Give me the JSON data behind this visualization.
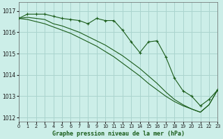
{
  "title": "Graphe pression niveau de la mer (hPa)",
  "background_color": "#cceee8",
  "grid_color": "#aad4ce",
  "line_color": "#1a5c1a",
  "x_hours": [
    0,
    1,
    2,
    3,
    4,
    5,
    6,
    7,
    8,
    9,
    10,
    11,
    12,
    13,
    14,
    15,
    16,
    17,
    18,
    19,
    20,
    21,
    22,
    23
  ],
  "line1_values": [
    1016.65,
    1016.85,
    1016.85,
    1016.85,
    1016.75,
    1016.65,
    1016.6,
    1016.55,
    1016.4,
    1016.65,
    1016.55,
    1016.55,
    1016.1,
    1015.55,
    1015.05,
    1015.55,
    1015.6,
    1014.85,
    1013.85,
    1013.25,
    1013.0,
    1012.55,
    1012.85,
    1013.3
  ],
  "line2_values": [
    1016.65,
    1016.7,
    1016.65,
    1016.6,
    1016.4,
    1016.3,
    1016.15,
    1016.0,
    1015.8,
    1015.6,
    1015.4,
    1015.15,
    1014.9,
    1014.6,
    1014.3,
    1013.95,
    1013.6,
    1013.2,
    1012.85,
    1012.6,
    1012.4,
    1012.25,
    1012.6,
    1013.3
  ],
  "line3_values": [
    1016.65,
    1016.6,
    1016.5,
    1016.4,
    1016.25,
    1016.1,
    1015.95,
    1015.75,
    1015.55,
    1015.35,
    1015.1,
    1014.85,
    1014.55,
    1014.25,
    1013.95,
    1013.6,
    1013.3,
    1013.0,
    1012.75,
    1012.55,
    1012.4,
    1012.25,
    1012.6,
    1013.3
  ],
  "ylim_min": 1011.8,
  "ylim_max": 1017.4,
  "yticks": [
    1012,
    1013,
    1014,
    1015,
    1016,
    1017
  ],
  "xlim_min": 0,
  "xlim_max": 23
}
